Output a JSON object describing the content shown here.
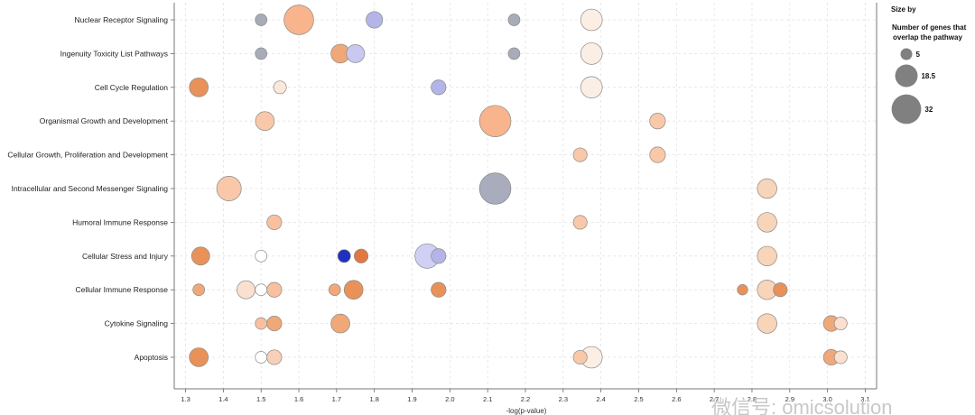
{
  "chart_data": {
    "type": "scatter",
    "xlabel": "-log(p-value)",
    "xlim": [
      1.27,
      3.13
    ],
    "xticks": [
      "1.3",
      "1.4",
      "1.5",
      "1.6",
      "1.7",
      "1.8",
      "1.9",
      "2.0",
      "2.1",
      "2.2",
      "2.3",
      "2.4",
      "2.5",
      "2.6",
      "2.7",
      "2.8",
      "2.9",
      "3.0",
      "3.1"
    ],
    "categories": [
      "Nuclear Receptor Signaling",
      "Ingenuity Toxicity List Pathways",
      "Cell Cycle Regulation",
      "Organismal Growth and Development",
      "Cellular Growth, Proliferation and Development",
      "Intracellular and Second Messenger Signaling",
      "Humoral Immune Response",
      "Cellular Stress and Injury",
      "Cellular Immune Response",
      "Cytokine Signaling",
      "Apoptosis"
    ],
    "grid": true,
    "legend": {
      "title": "Size by",
      "subtitle_lines": [
        "Number of genes that",
        "overlap the pathway"
      ],
      "sizes": [
        5,
        18.5,
        32
      ],
      "size_labels": [
        "5",
        "18.5",
        "32"
      ],
      "color": "#808080"
    },
    "points": [
      {
        "category": 0,
        "x": 1.5,
        "size": 5,
        "color": "#a8acb8"
      },
      {
        "category": 0,
        "x": 1.6,
        "size": 32,
        "color": "#f8b48c"
      },
      {
        "category": 0,
        "x": 1.8,
        "size": 10,
        "color": "#b4b4e8"
      },
      {
        "category": 0,
        "x": 2.17,
        "size": 5,
        "color": "#a8acb8"
      },
      {
        "category": 0,
        "x": 2.375,
        "size": 17,
        "color": "#fbeee4"
      },
      {
        "category": 1,
        "x": 1.5,
        "size": 5,
        "color": "#a8acb8"
      },
      {
        "category": 1,
        "x": 1.71,
        "size": 13,
        "color": "#f0a878"
      },
      {
        "category": 1,
        "x": 1.75,
        "size": 12,
        "color": "#c8c8f0"
      },
      {
        "category": 1,
        "x": 2.17,
        "size": 5,
        "color": "#a8acb8"
      },
      {
        "category": 1,
        "x": 2.375,
        "size": 17,
        "color": "#fbeee4"
      },
      {
        "category": 2,
        "x": 1.335,
        "size": 13,
        "color": "#e8925a"
      },
      {
        "category": 2,
        "x": 1.55,
        "size": 6,
        "color": "#fde8d8"
      },
      {
        "category": 2,
        "x": 1.97,
        "size": 8,
        "color": "#b4b4e8"
      },
      {
        "category": 2,
        "x": 2.375,
        "size": 17,
        "color": "#fbeee4"
      },
      {
        "category": 3,
        "x": 1.51,
        "size": 13,
        "color": "#f8c8a8"
      },
      {
        "category": 3,
        "x": 2.12,
        "size": 36,
        "color": "#f8b48c"
      },
      {
        "category": 3,
        "x": 2.55,
        "size": 9,
        "color": "#f8c8a8"
      },
      {
        "category": 4,
        "x": 2.345,
        "size": 7,
        "color": "#f8c8a8"
      },
      {
        "category": 4,
        "x": 2.55,
        "size": 9,
        "color": "#f8c8a8"
      },
      {
        "category": 5,
        "x": 1.415,
        "size": 22,
        "color": "#f8c8a8"
      },
      {
        "category": 5,
        "x": 2.12,
        "size": 36,
        "color": "#a8acbc"
      },
      {
        "category": 5,
        "x": 2.84,
        "size": 14,
        "color": "#f8d4b8"
      },
      {
        "category": 6,
        "x": 1.535,
        "size": 8,
        "color": "#f8c0a0"
      },
      {
        "category": 6,
        "x": 2.345,
        "size": 7,
        "color": "#f8c8a8"
      },
      {
        "category": 6,
        "x": 2.84,
        "size": 14,
        "color": "#f8d4b8"
      },
      {
        "category": 7,
        "x": 1.34,
        "size": 12,
        "color": "#e8925a"
      },
      {
        "category": 7,
        "x": 1.5,
        "size": 5,
        "color": "#ffffff"
      },
      {
        "category": 7,
        "x": 1.72,
        "size": 6,
        "color": "#2030c0"
      },
      {
        "category": 7,
        "x": 1.765,
        "size": 7,
        "color": "#e07840"
      },
      {
        "category": 7,
        "x": 1.94,
        "size": 22,
        "color": "#d0d0f4"
      },
      {
        "category": 7,
        "x": 1.97,
        "size": 8,
        "color": "#b4b4e8"
      },
      {
        "category": 7,
        "x": 2.84,
        "size": 14,
        "color": "#f8d4b8"
      },
      {
        "category": 8,
        "x": 1.335,
        "size": 5,
        "color": "#f0a878"
      },
      {
        "category": 8,
        "x": 1.46,
        "size": 12,
        "color": "#fbe0d0"
      },
      {
        "category": 8,
        "x": 1.5,
        "size": 5,
        "color": "#ffffff"
      },
      {
        "category": 8,
        "x": 1.535,
        "size": 8,
        "color": "#f8c0a0"
      },
      {
        "category": 8,
        "x": 1.695,
        "size": 5,
        "color": "#f0a878"
      },
      {
        "category": 8,
        "x": 1.745,
        "size": 13,
        "color": "#e8925a"
      },
      {
        "category": 8,
        "x": 1.97,
        "size": 8,
        "color": "#e8925a"
      },
      {
        "category": 8,
        "x": 2.775,
        "size": 4,
        "color": "#e8925a"
      },
      {
        "category": 8,
        "x": 2.84,
        "size": 14,
        "color": "#f8d4b8"
      },
      {
        "category": 8,
        "x": 2.875,
        "size": 7,
        "color": "#e8925a"
      },
      {
        "category": 9,
        "x": 1.5,
        "size": 5,
        "color": "#f8c0a0"
      },
      {
        "category": 9,
        "x": 1.535,
        "size": 8,
        "color": "#f0a878"
      },
      {
        "category": 9,
        "x": 1.71,
        "size": 13,
        "color": "#f0a878"
      },
      {
        "category": 9,
        "x": 2.84,
        "size": 14,
        "color": "#f8d4b8"
      },
      {
        "category": 9,
        "x": 3.01,
        "size": 9,
        "color": "#f0a878"
      },
      {
        "category": 9,
        "x": 3.035,
        "size": 6,
        "color": "#fbe0d0"
      },
      {
        "category": 10,
        "x": 1.335,
        "size": 13,
        "color": "#e8925a"
      },
      {
        "category": 10,
        "x": 1.5,
        "size": 5,
        "color": "#ffffff"
      },
      {
        "category": 10,
        "x": 1.535,
        "size": 8,
        "color": "#f8d0b8"
      },
      {
        "category": 10,
        "x": 2.345,
        "size": 7,
        "color": "#f8c8a8"
      },
      {
        "category": 10,
        "x": 2.375,
        "size": 17,
        "color": "#fbeee4"
      },
      {
        "category": 10,
        "x": 3.01,
        "size": 9,
        "color": "#f0a878"
      },
      {
        "category": 10,
        "x": 3.035,
        "size": 6,
        "color": "#fbe0d0"
      }
    ]
  },
  "watermark": {
    "text": "微信号: omicsolution"
  }
}
